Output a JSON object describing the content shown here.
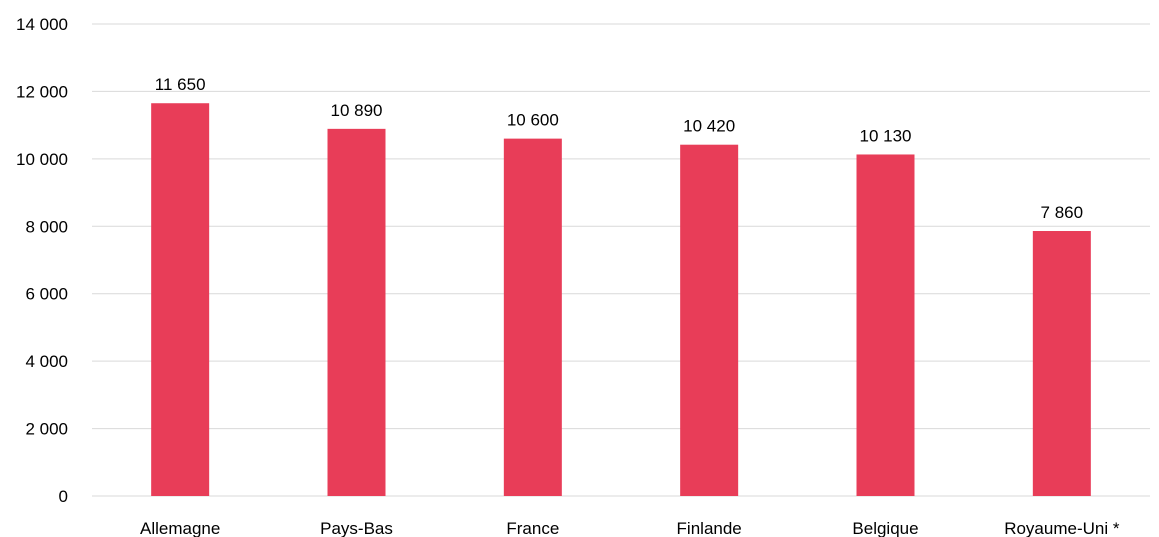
{
  "chart_data": {
    "type": "bar",
    "title": "",
    "xlabel": "",
    "ylabel": "",
    "categories": [
      "Allemagne",
      "Pays-Bas",
      "France",
      "Finlande",
      "Belgique",
      "Royaume-Uni *"
    ],
    "values": [
      11650,
      10890,
      10600,
      10420,
      10130,
      7860
    ],
    "value_labels": [
      "11 650",
      "10 890",
      "10 600",
      "10 420",
      "10 130",
      "7 860"
    ],
    "ylim": [
      0,
      14000
    ],
    "yticks": [
      0,
      2000,
      4000,
      6000,
      8000,
      10000,
      12000,
      14000
    ],
    "ytick_labels": [
      "0",
      "2 000",
      "4 000",
      "6 000",
      "8 000",
      "10 000",
      "12 000",
      "14 000"
    ],
    "grid": true,
    "legend": "none",
    "bar_color": "#e83d58"
  }
}
